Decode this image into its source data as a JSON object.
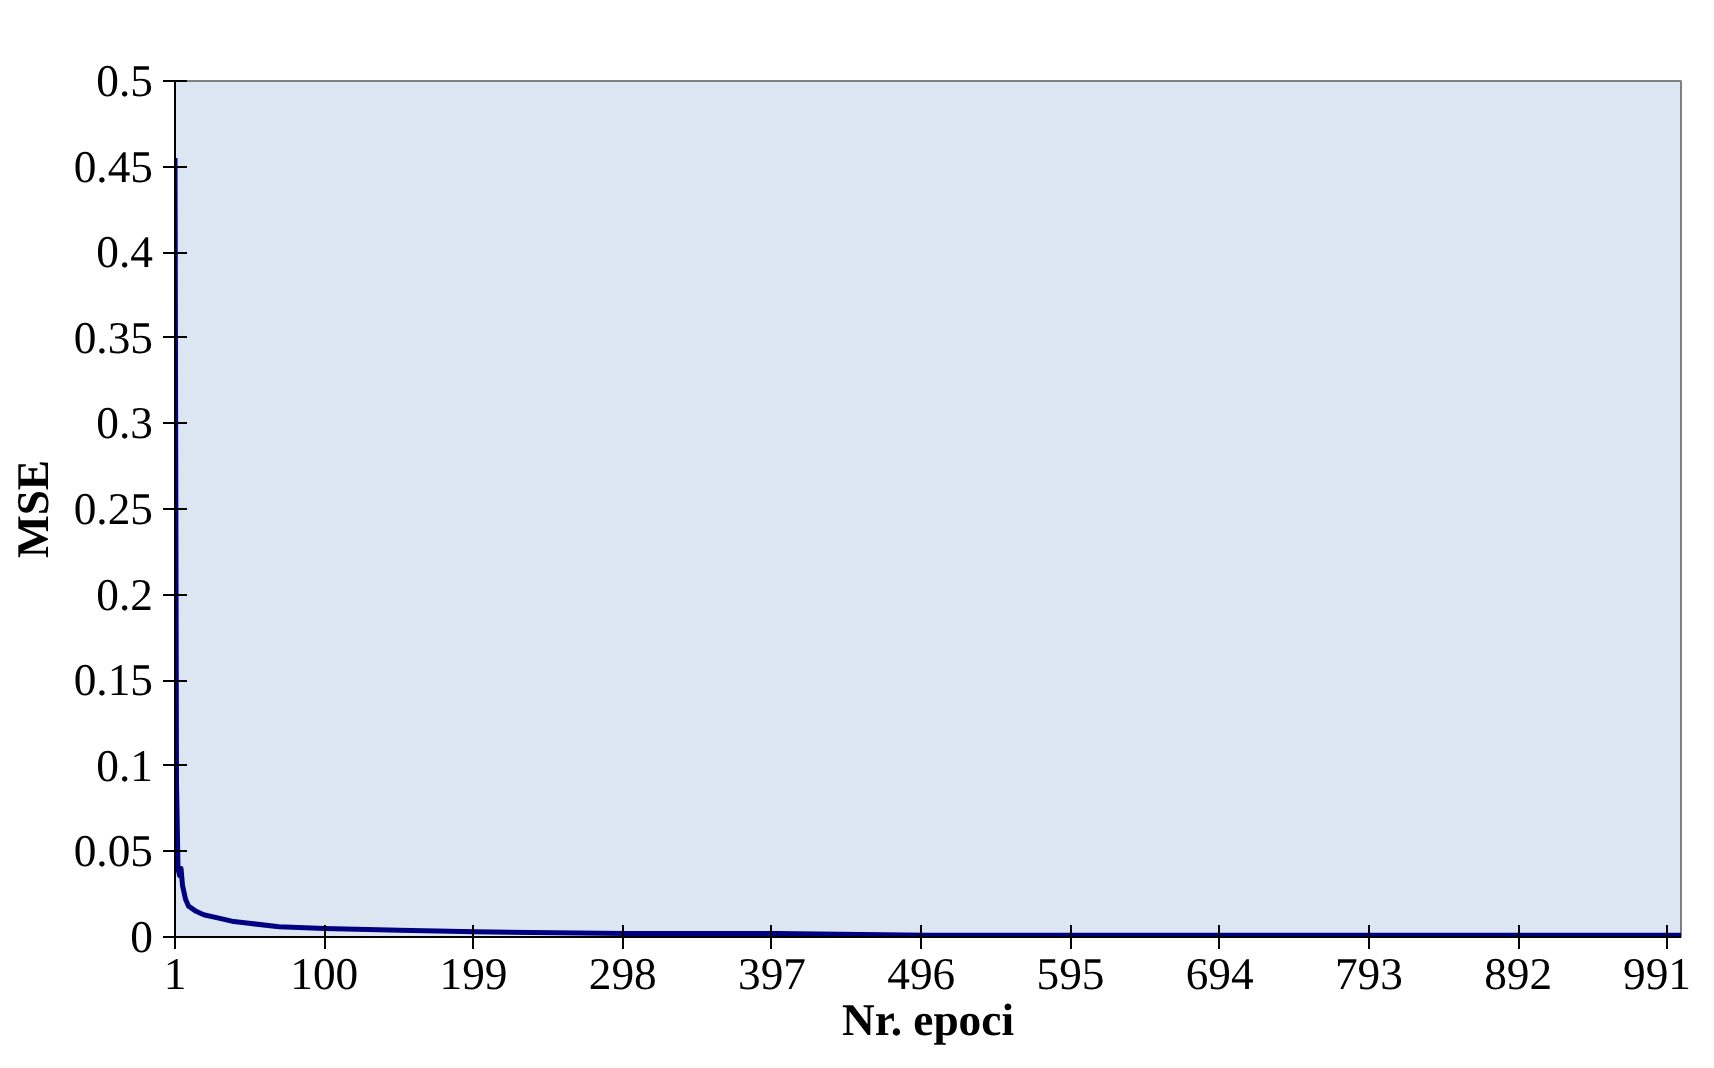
{
  "chart_data": {
    "type": "line",
    "xlabel": "Nr. epoci",
    "ylabel": "MSE",
    "x": [
      1,
      2,
      3,
      4,
      5,
      6,
      8,
      10,
      15,
      20,
      30,
      40,
      50,
      70,
      100,
      150,
      200,
      300,
      400,
      500,
      600,
      700,
      800,
      900,
      1000
    ],
    "series": [
      {
        "color": "#000080",
        "values": [
          0.455,
          0.09,
          0.04,
          0.036,
          0.04,
          0.03,
          0.022,
          0.018,
          0.015,
          0.013,
          0.011,
          0.009,
          0.008,
          0.006,
          0.005,
          0.004,
          0.003,
          0.002,
          0.002,
          0.001,
          0.001,
          0.001,
          0.001,
          0.001,
          0.001
        ]
      }
    ],
    "xlim": [
      1,
      1000
    ],
    "xticks": [
      1,
      100,
      199,
      298,
      397,
      496,
      595,
      694,
      793,
      892,
      991
    ],
    "ylim": [
      0,
      0.5
    ],
    "yticks": [
      0,
      0.05,
      0.1,
      0.15,
      0.2,
      0.25,
      0.3,
      0.35,
      0.4,
      0.45,
      0.5
    ],
    "grid": false,
    "marker": "none",
    "line_style": "solid"
  }
}
